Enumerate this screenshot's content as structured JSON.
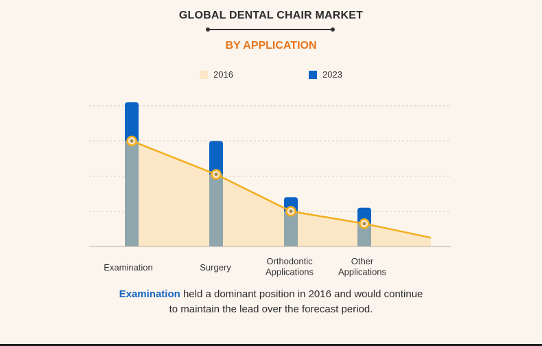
{
  "title": "GLOBAL DENTAL CHAIR MARKET",
  "subtitle": "BY APPLICATION",
  "caption": {
    "highlight": "Examination",
    "line1_rest": " held a dominant position in 2016 and would continue",
    "line2": "to maintain the lead over the forecast period."
  },
  "colors": {
    "series_2016": "#fbe7c6",
    "series_2023": "#0b63c4",
    "bar_overlap": "#8fa6ad",
    "trend_line": "#f4ae1d",
    "accent": "#e8751a",
    "background": "#fbf5ee"
  },
  "chart_data": {
    "type": "bar",
    "title": "GLOBAL DENTAL CHAIR MARKET",
    "subtitle": "BY APPLICATION",
    "categories": [
      [
        "Examination"
      ],
      [
        "Surgery"
      ],
      [
        "Orthodontic",
        "Applications"
      ],
      [
        "Other",
        "Applications"
      ]
    ],
    "series": [
      {
        "name": "2016",
        "values": [
          3.0,
          2.05,
          1.0,
          0.65
        ]
      },
      {
        "name": "2023",
        "values": [
          4.1,
          3.0,
          1.4,
          1.1
        ]
      }
    ],
    "trend": {
      "series": "2016",
      "end_value": 0.25
    },
    "ylim": [
      0,
      4.1
    ],
    "grid": true,
    "axis_tick_labels_shown": false,
    "legend_position": "top"
  }
}
